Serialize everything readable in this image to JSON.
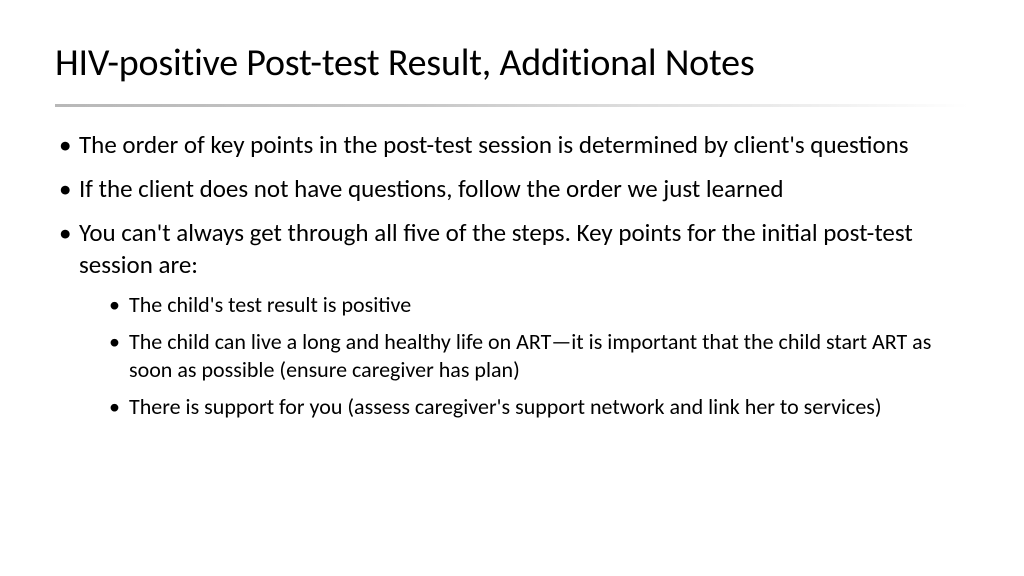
{
  "slide": {
    "title": "HIV-positive Post-test Result, Additional Notes",
    "bullets": [
      {
        "text": "The order of key points in the post-test session is determined by client's questions",
        "sub": []
      },
      {
        "text": "If the client does not have questions, follow the order we just learned",
        "sub": []
      },
      {
        "text": "You can't always get through all five of the steps. Key points for the initial post-test session are:",
        "sub": [
          "The child's test result is positive",
          "The child can live a long and healthy life on ART—it is important that the child start ART as soon as possible (ensure caregiver has plan)",
          "There is support for you (assess caregiver's support network and link her to services)"
        ]
      }
    ]
  },
  "style": {
    "background_color": "#ffffff",
    "text_color": "#000000",
    "title_fontsize": 38,
    "body_fontsize": 25,
    "sub_fontsize": 22,
    "divider_gradient_start": "#b8b8b8",
    "divider_gradient_end": "#ffffff"
  }
}
